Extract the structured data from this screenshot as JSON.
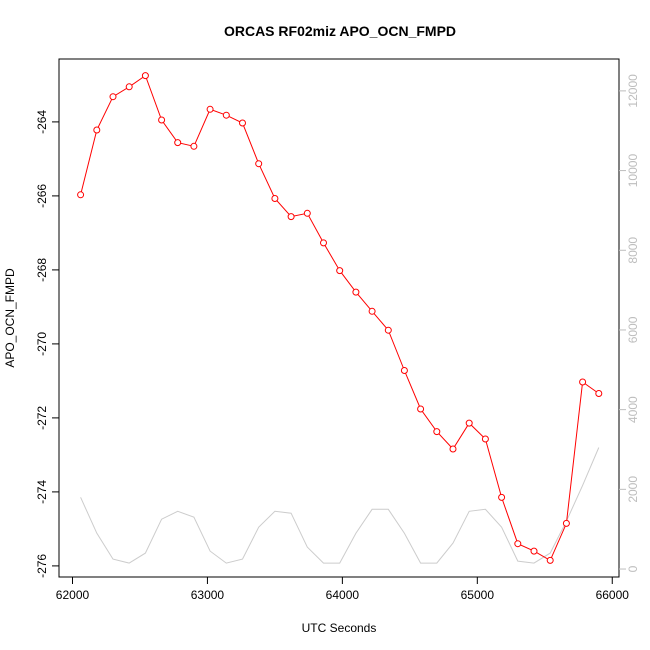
{
  "chart_data": {
    "type": "line",
    "title": "ORCAS RF02miz APO_OCN_FMPD",
    "xlabel": "UTC Seconds",
    "ylabel": "APO_OCN_FMPD",
    "xlim": [
      61900,
      66050
    ],
    "ylim": [
      -276.3,
      -262.3
    ],
    "y2lim": [
      -200,
      12800
    ],
    "xticks": [
      62000,
      63000,
      64000,
      65000,
      66000
    ],
    "yticks": [
      -276,
      -274,
      -272,
      -270,
      -268,
      -266,
      -264
    ],
    "y2ticks": [
      0,
      2000,
      4000,
      6000,
      8000,
      10000,
      12000
    ],
    "grid": false,
    "legend": "none",
    "series": [
      {
        "axis": "left",
        "color": "#ff0000",
        "marker": "circle",
        "x": [
          62060,
          62180,
          62300,
          62420,
          62540,
          62660,
          62780,
          62900,
          63020,
          63140,
          63260,
          63380,
          63500,
          63620,
          63740,
          63860,
          63980,
          64100,
          64220,
          64340,
          64460,
          64580,
          64700,
          64820,
          64940,
          65060,
          65180,
          65300,
          65420,
          65540,
          65660,
          65780,
          65900
        ],
        "y": [
          -265.97,
          -264.22,
          -263.32,
          -263.05,
          -262.75,
          -263.95,
          -264.56,
          -264.66,
          -263.66,
          -263.82,
          -264.03,
          -265.13,
          -266.07,
          -266.56,
          -266.47,
          -267.27,
          -268.02,
          -268.6,
          -269.12,
          -269.63,
          -270.72,
          -271.76,
          -272.37,
          -272.84,
          -272.14,
          -272.57,
          -274.15,
          -275.4,
          -275.6,
          -275.85,
          -274.85,
          -271.03,
          -271.34
        ]
      },
      {
        "axis": "right",
        "color": "#cccccc",
        "marker": "none",
        "x": [
          62060,
          62180,
          62300,
          62420,
          62540,
          62660,
          62780,
          62900,
          63020,
          63140,
          63260,
          63380,
          63500,
          63620,
          63740,
          63860,
          63980,
          64100,
          64220,
          64340,
          64460,
          64580,
          64700,
          64820,
          64940,
          65060,
          65180,
          65300,
          65420,
          65540,
          65660,
          65780,
          65900
        ],
        "y": [
          1800,
          900,
          250,
          150,
          400,
          1250,
          1450,
          1300,
          450,
          150,
          250,
          1050,
          1450,
          1400,
          550,
          150,
          150,
          900,
          1500,
          1500,
          900,
          150,
          150,
          650,
          1450,
          1500,
          1050,
          200,
          150,
          400,
          1200,
          2100,
          3050
        ]
      }
    ]
  }
}
